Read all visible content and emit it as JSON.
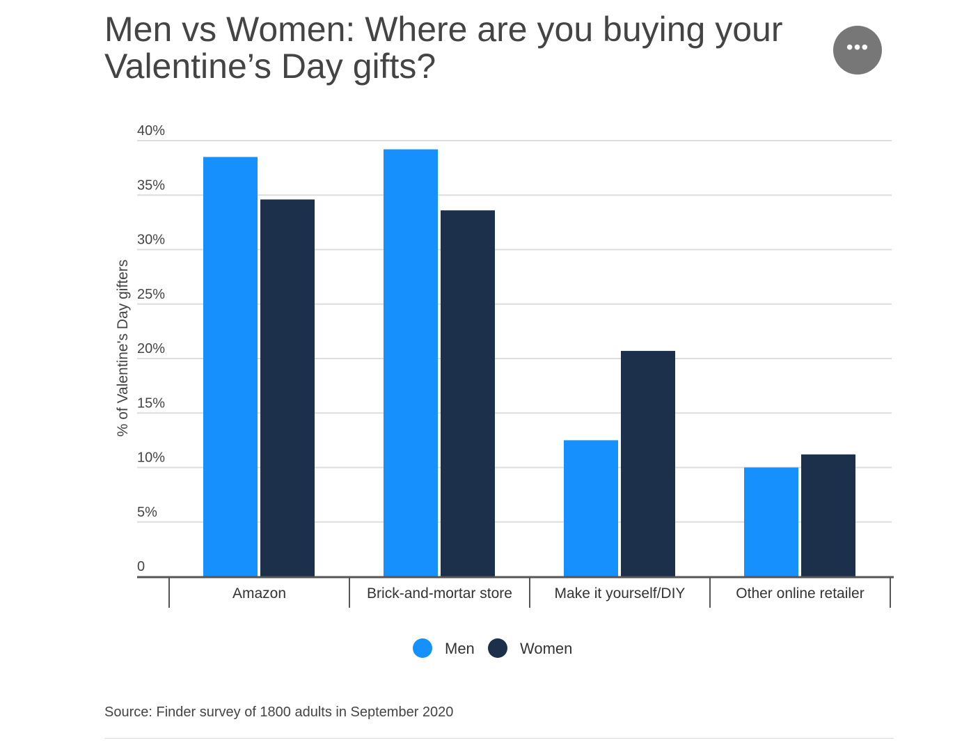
{
  "title": "Men vs Women: Where are you buying your Valentine’s Day gifts?",
  "menu_icon": "more-horizontal-icon",
  "source": "Source: Finder survey of 1800 adults in September 2020",
  "chart_data": {
    "type": "bar",
    "title": "Men vs Women: Where are you buying your Valentine’s Day gifts?",
    "xlabel": "",
    "ylabel": "% of Valentine's Day gifters",
    "ylim": [
      0,
      40
    ],
    "yticks": [
      0,
      5,
      10,
      15,
      20,
      25,
      30,
      35,
      40
    ],
    "ytick_labels": [
      "0",
      "5%",
      "10%",
      "15%",
      "20%",
      "25%",
      "30%",
      "35%",
      "40%"
    ],
    "grid": true,
    "legend": "bottom",
    "categories": [
      "Amazon",
      "Brick-and-mortar store",
      "Make it yourself/DIY",
      "Other online retailer"
    ],
    "series": [
      {
        "name": "Men",
        "color": "#1690fc",
        "values": [
          38.5,
          39.2,
          12.5,
          10.0
        ]
      },
      {
        "name": "Women",
        "color": "#1c2f4b",
        "values": [
          34.6,
          33.6,
          20.7,
          11.2
        ]
      }
    ]
  }
}
